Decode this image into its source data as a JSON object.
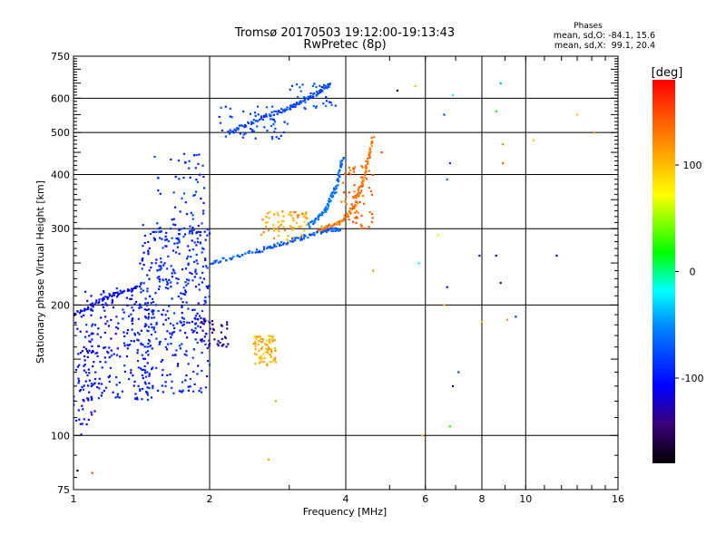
{
  "chart_data": {
    "type": "scatter",
    "title": "Tromsø 20170503 19:12:00-19:13:43",
    "subtitle": "RwPretec (8p)",
    "xlabel": "Frequency [MHz]",
    "ylabel": "Stationary phase Virtual Height [km]",
    "x_scale": "log",
    "y_scale": "log",
    "xlim": [
      1,
      16
    ],
    "ylim": [
      75,
      750
    ],
    "x_ticks": [
      "1",
      "2",
      "4",
      "6",
      "8",
      "10",
      "16"
    ],
    "y_ticks": [
      "75",
      "100",
      "200",
      "300",
      "400",
      "500",
      "600",
      "750"
    ],
    "grid": true,
    "stats": {
      "heading": "Phases",
      "o_line": "mean, sd,O: -84.1, 15.6",
      "x_line": "mean, sd,X:  99.1, 20.4"
    },
    "colorbar": {
      "label": "[deg]",
      "range": [
        -180,
        180
      ],
      "ticks": [
        "100",
        "0",
        "-100"
      ],
      "colormap": "rainbow"
    },
    "clusters": [
      {
        "x": [
          1.0,
          1.12
        ],
        "y": [
          100,
          190
        ],
        "phase": -110,
        "count": 60
      },
      {
        "x": [
          1.05,
          1.5
        ],
        "y": [
          120,
          220
        ],
        "phase": -100,
        "count": 220
      },
      {
        "x": [
          1.4,
          2.0
        ],
        "y": [
          125,
          310
        ],
        "phase": -95,
        "count": 320
      },
      {
        "x": [
          1.5,
          2.0
        ],
        "y": [
          180,
          450
        ],
        "phase": -90,
        "count": 120
      },
      {
        "x": [
          1.9,
          2.2
        ],
        "y": [
          160,
          185
        ],
        "phase": -140,
        "count": 40
      },
      {
        "x": [
          2.5,
          2.8
        ],
        "y": [
          145,
          170
        ],
        "phase": 105,
        "count": 80
      },
      {
        "x": [
          2.6,
          3.3
        ],
        "y": [
          280,
          330
        ],
        "phase": 110,
        "count": 70
      },
      {
        "x": [
          3.9,
          4.6
        ],
        "y": [
          300,
          420
        ],
        "phase": 140,
        "count": 60
      },
      {
        "x": [
          2.1,
          3.0
        ],
        "y": [
          480,
          580
        ],
        "phase": -80,
        "count": 50
      },
      {
        "x": [
          3.0,
          3.8
        ],
        "y": [
          560,
          650
        ],
        "phase": -75,
        "count": 30
      }
    ],
    "traces": [
      {
        "x": [
          1.0,
          1.2,
          1.4
        ],
        "y": [
          190,
          210,
          220
        ],
        "phase": -110
      },
      {
        "x": [
          2.0,
          2.5,
          3.0,
          3.5,
          3.9
        ],
        "y": [
          250,
          265,
          280,
          295,
          300
        ],
        "phase": -70
      },
      {
        "x": [
          3.5,
          3.9,
          4.2,
          4.4,
          4.6
        ],
        "y": [
          300,
          310,
          340,
          400,
          490
        ],
        "phase": 130
      },
      {
        "x": [
          3.3,
          3.6,
          3.8,
          3.95
        ],
        "y": [
          305,
          330,
          370,
          440
        ],
        "phase": -60
      },
      {
        "x": [
          2.2,
          2.6,
          3.0,
          3.4,
          3.7
        ],
        "y": [
          500,
          540,
          570,
          610,
          650
        ],
        "phase": -80
      }
    ],
    "scatter_points": [
      {
        "x": 1.02,
        "y": 83,
        "phase": -180
      },
      {
        "x": 1.1,
        "y": 82,
        "phase": 150
      },
      {
        "x": 2.7,
        "y": 88,
        "phase": 110
      },
      {
        "x": 2.8,
        "y": 120,
        "phase": 110
      },
      {
        "x": 5.9,
        "y": 100,
        "phase": 100
      },
      {
        "x": 6.8,
        "y": 105,
        "phase": 30
      },
      {
        "x": 6.9,
        "y": 130,
        "phase": -140
      },
      {
        "x": 7.1,
        "y": 140,
        "phase": -80
      },
      {
        "x": 6.7,
        "y": 220,
        "phase": -110
      },
      {
        "x": 5.8,
        "y": 250,
        "phase": -20
      },
      {
        "x": 4.6,
        "y": 240,
        "phase": 120
      },
      {
        "x": 7.9,
        "y": 260,
        "phase": -100
      },
      {
        "x": 8.6,
        "y": 260,
        "phase": -120
      },
      {
        "x": 11.7,
        "y": 260,
        "phase": -110
      },
      {
        "x": 8.8,
        "y": 225,
        "phase": -140
      },
      {
        "x": 9.1,
        "y": 185,
        "phase": 120
      },
      {
        "x": 8.0,
        "y": 183,
        "phase": 100
      },
      {
        "x": 9.5,
        "y": 188,
        "phase": -90
      },
      {
        "x": 8.9,
        "y": 470,
        "phase": 120
      },
      {
        "x": 8.9,
        "y": 425,
        "phase": 140
      },
      {
        "x": 6.8,
        "y": 425,
        "phase": -80
      },
      {
        "x": 6.7,
        "y": 390,
        "phase": -60
      },
      {
        "x": 8.8,
        "y": 650,
        "phase": -40
      },
      {
        "x": 6.9,
        "y": 610,
        "phase": -20
      },
      {
        "x": 5.7,
        "y": 640,
        "phase": 100
      },
      {
        "x": 5.2,
        "y": 625,
        "phase": -150
      },
      {
        "x": 4.8,
        "y": 450,
        "phase": 150
      },
      {
        "x": 6.6,
        "y": 550,
        "phase": -80
      },
      {
        "x": 10.4,
        "y": 480,
        "phase": 100
      },
      {
        "x": 13.0,
        "y": 550,
        "phase": 100
      },
      {
        "x": 14.2,
        "y": 500,
        "phase": 120
      },
      {
        "x": 8.6,
        "y": 560,
        "phase": 20
      },
      {
        "x": 6.6,
        "y": 200,
        "phase": 100
      },
      {
        "x": 6.4,
        "y": 290,
        "phase": 80
      }
    ]
  }
}
